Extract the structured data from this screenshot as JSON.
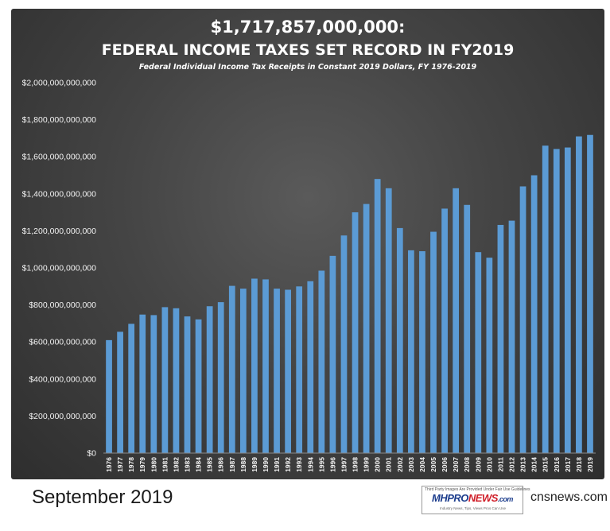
{
  "chart_data": {
    "type": "bar",
    "title": "$1,717,857,000,000:",
    "subtitle": "FEDERAL INCOME TAXES SET RECORD IN FY2019",
    "description": "Federal Individual Income Tax Receipts in Constant 2019 Dollars, FY 1976-2019",
    "xlabel": "",
    "ylabel": "",
    "ylim": [
      0,
      2000000000000
    ],
    "yticks": [
      0,
      200000000000,
      400000000000,
      600000000000,
      800000000000,
      1000000000000,
      1200000000000,
      1400000000000,
      1600000000000,
      1800000000000,
      2000000000000
    ],
    "ytick_labels": [
      "$0",
      "$200,000,000,000",
      "$400,000,000,000",
      "$600,000,000,000",
      "$800,000,000,000",
      "$1,000,000,000,000",
      "$1,200,000,000,000",
      "$1,400,000,000,000",
      "$1,600,000,000,000",
      "$1,800,000,000,000",
      "$2,000,000,000,000"
    ],
    "grid": false,
    "bar_color": "#5b9bd5",
    "categories": [
      "1976",
      "1977",
      "1978",
      "1979",
      "1980",
      "1981",
      "1982",
      "1983",
      "1984",
      "1985",
      "1986",
      "1987",
      "1988",
      "1989",
      "1990",
      "1991",
      "1992",
      "1993",
      "1994",
      "1995",
      "1996",
      "1997",
      "1998",
      "1999",
      "2000",
      "2001",
      "2002",
      "2003",
      "2004",
      "2005",
      "2006",
      "2007",
      "2008",
      "2009",
      "2010",
      "2011",
      "2012",
      "2013",
      "2014",
      "2015",
      "2016",
      "2017",
      "2018",
      "2019"
    ],
    "values": [
      610000000000,
      655000000000,
      698000000000,
      748000000000,
      745000000000,
      788000000000,
      782000000000,
      738000000000,
      722000000000,
      793000000000,
      815000000000,
      903000000000,
      888000000000,
      942000000000,
      938000000000,
      888000000000,
      882000000000,
      900000000000,
      928000000000,
      985000000000,
      1065000000000,
      1175000000000,
      1300000000000,
      1345000000000,
      1480000000000,
      1430000000000,
      1215000000000,
      1095000000000,
      1090000000000,
      1195000000000,
      1320000000000,
      1430000000000,
      1340000000000,
      1085000000000,
      1055000000000,
      1232000000000,
      1255000000000,
      1440000000000,
      1500000000000,
      1660000000000,
      1642000000000,
      1650000000000,
      1710000000000,
      1717857000000
    ]
  },
  "caption": "September 2019",
  "logo": {
    "tagline": "Third Party Images Are Provided Under Fair Use Guidelines",
    "mh": "MH",
    "pro": "PRO",
    "news": "NEWS",
    "suffix": ".com",
    "sub": "Industry News, Tips, Views Pros Can Use"
  },
  "source": "cnsnews.com"
}
